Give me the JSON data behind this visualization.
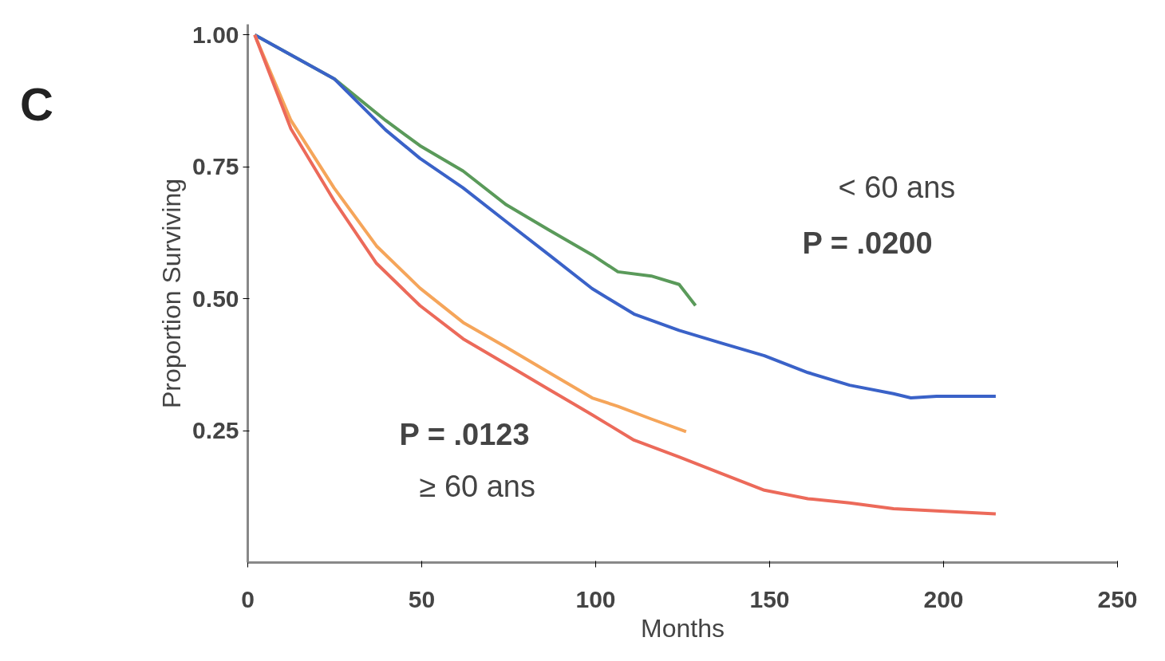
{
  "chart_data": {
    "type": "line",
    "title": "C",
    "xlabel": "Months",
    "ylabel": "Proportion Surviving",
    "xlim": [
      0,
      250
    ],
    "xticks": [
      0,
      50,
      100,
      150,
      200,
      250
    ],
    "ylim": [
      0,
      1.02
    ],
    "yticks": [
      {
        "value": 0.25,
        "label": "0.25"
      },
      {
        "value": 0.5,
        "label": "0.50"
      },
      {
        "value": 0.75,
        "label": "0.75"
      },
      {
        "value": 1.0,
        "label": "1.00"
      }
    ],
    "grid": false,
    "marker": "none",
    "line_style": "solid",
    "annotations": [
      "< 60 ans",
      "P = .0200",
      "P = .0123",
      "≥ 60 ans"
    ],
    "series": [
      {
        "color": "#5a9a5a",
        "x": [
          2,
          24.8,
          39.6,
          49.5,
          61.9,
          74.3,
          86.6,
          99,
          106.4,
          116,
          124,
          128.7
        ],
        "values": [
          1.0,
          0.917,
          0.838,
          0.79,
          0.742,
          0.678,
          0.63,
          0.583,
          0.551,
          0.543,
          0.527,
          0.487
        ]
      },
      {
        "color": "#3a62c8",
        "x": [
          2,
          24.8,
          39.6,
          49.5,
          61.9,
          74.3,
          86.6,
          99,
          111,
          124,
          136,
          148.5,
          161,
          173,
          185.6,
          190.6,
          198,
          215
        ],
        "values": [
          1.0,
          0.917,
          0.82,
          0.766,
          0.71,
          0.646,
          0.583,
          0.519,
          0.471,
          0.44,
          0.416,
          0.392,
          0.36,
          0.336,
          0.32,
          0.312,
          0.315,
          0.315
        ]
      },
      {
        "color": "#f5a55a",
        "x": [
          2,
          12.4,
          24.8,
          37,
          49.5,
          61.9,
          74.3,
          86.6,
          99,
          106.4,
          116,
          126
        ],
        "values": [
          1.0,
          0.838,
          0.71,
          0.6,
          0.52,
          0.455,
          0.408,
          0.36,
          0.312,
          0.296,
          0.272,
          0.248
        ]
      },
      {
        "color": "#ec6a5a",
        "x": [
          2,
          12.4,
          24.8,
          37,
          49.5,
          61.9,
          74.3,
          86.6,
          99,
          111,
          124,
          136,
          148.5,
          161,
          173,
          185.6,
          215
        ],
        "values": [
          1.0,
          0.822,
          0.686,
          0.567,
          0.487,
          0.424,
          0.376,
          0.328,
          0.28,
          0.232,
          0.2,
          0.169,
          0.137,
          0.121,
          0.113,
          0.102,
          0.092
        ]
      }
    ]
  }
}
